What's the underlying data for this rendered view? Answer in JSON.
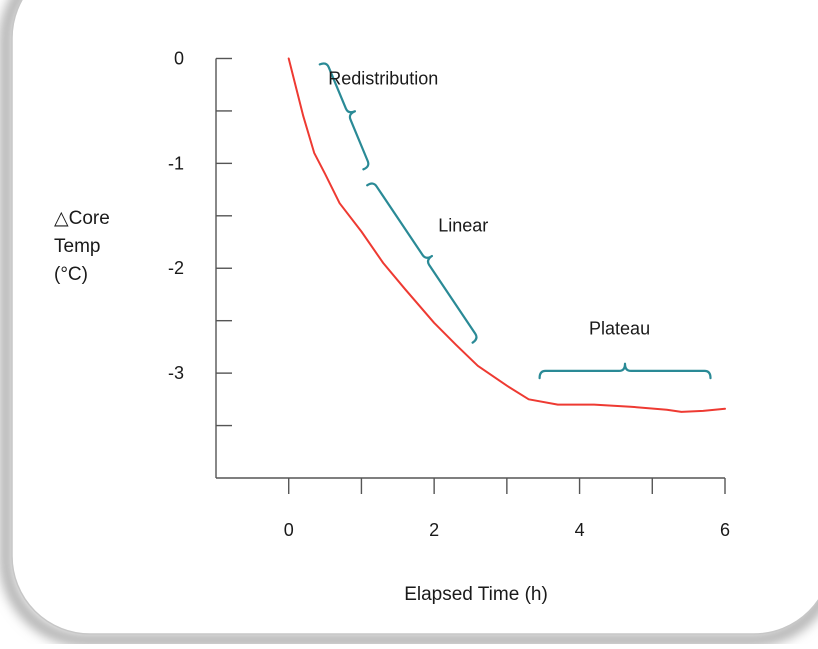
{
  "chart_data": {
    "type": "line",
    "title": "",
    "xlabel": "Elapsed Time (h)",
    "ylabel_lines": [
      "△Core",
      "Temp",
      "(°C)"
    ],
    "xlim": [
      -1,
      6
    ],
    "ylim": [
      -4,
      0.1
    ],
    "x_ticks": [
      0,
      2,
      4,
      6
    ],
    "x_minor_ticks": [
      -1,
      1,
      3,
      5
    ],
    "y_ticks": [
      0,
      -1,
      -2,
      -3
    ],
    "y_minor_ticks": [
      -0.5,
      -1.5,
      -2.5,
      -3.5
    ],
    "grid": false,
    "series": [
      {
        "name": "",
        "color": "#ee3a32",
        "x": [
          0,
          0.2,
          0.35,
          0.5,
          0.7,
          1.0,
          1.3,
          1.6,
          2.0,
          2.3,
          2.6,
          3.0,
          3.3,
          3.7,
          4.2,
          4.7,
          5.2,
          5.4,
          5.7,
          6.0
        ],
        "y": [
          0,
          -0.55,
          -0.9,
          -1.1,
          -1.38,
          -1.65,
          -1.95,
          -2.2,
          -2.52,
          -2.73,
          -2.93,
          -3.12,
          -3.25,
          -3.3,
          -3.3,
          -3.32,
          -3.35,
          -3.37,
          -3.36,
          -3.34
        ]
      }
    ],
    "annotations": [
      {
        "label": "Redistribution",
        "x": 1.3,
        "y": -0.25,
        "bracket_from": [
          0.45,
          -0.05
        ],
        "bracket_to": [
          1.05,
          -1.05
        ],
        "color": "#2a8a96"
      },
      {
        "label": "Linear",
        "x": 2.4,
        "y": -1.65,
        "bracket_from": [
          1.1,
          -1.2
        ],
        "bracket_to": [
          2.55,
          -2.7
        ],
        "color": "#2a8a96"
      },
      {
        "label": "Plateau",
        "x": 4.55,
        "y": -2.63,
        "bracket_from": [
          3.45,
          -3.03
        ],
        "bracket_to": [
          5.8,
          -3.03
        ],
        "color": "#2a8a96"
      }
    ]
  }
}
